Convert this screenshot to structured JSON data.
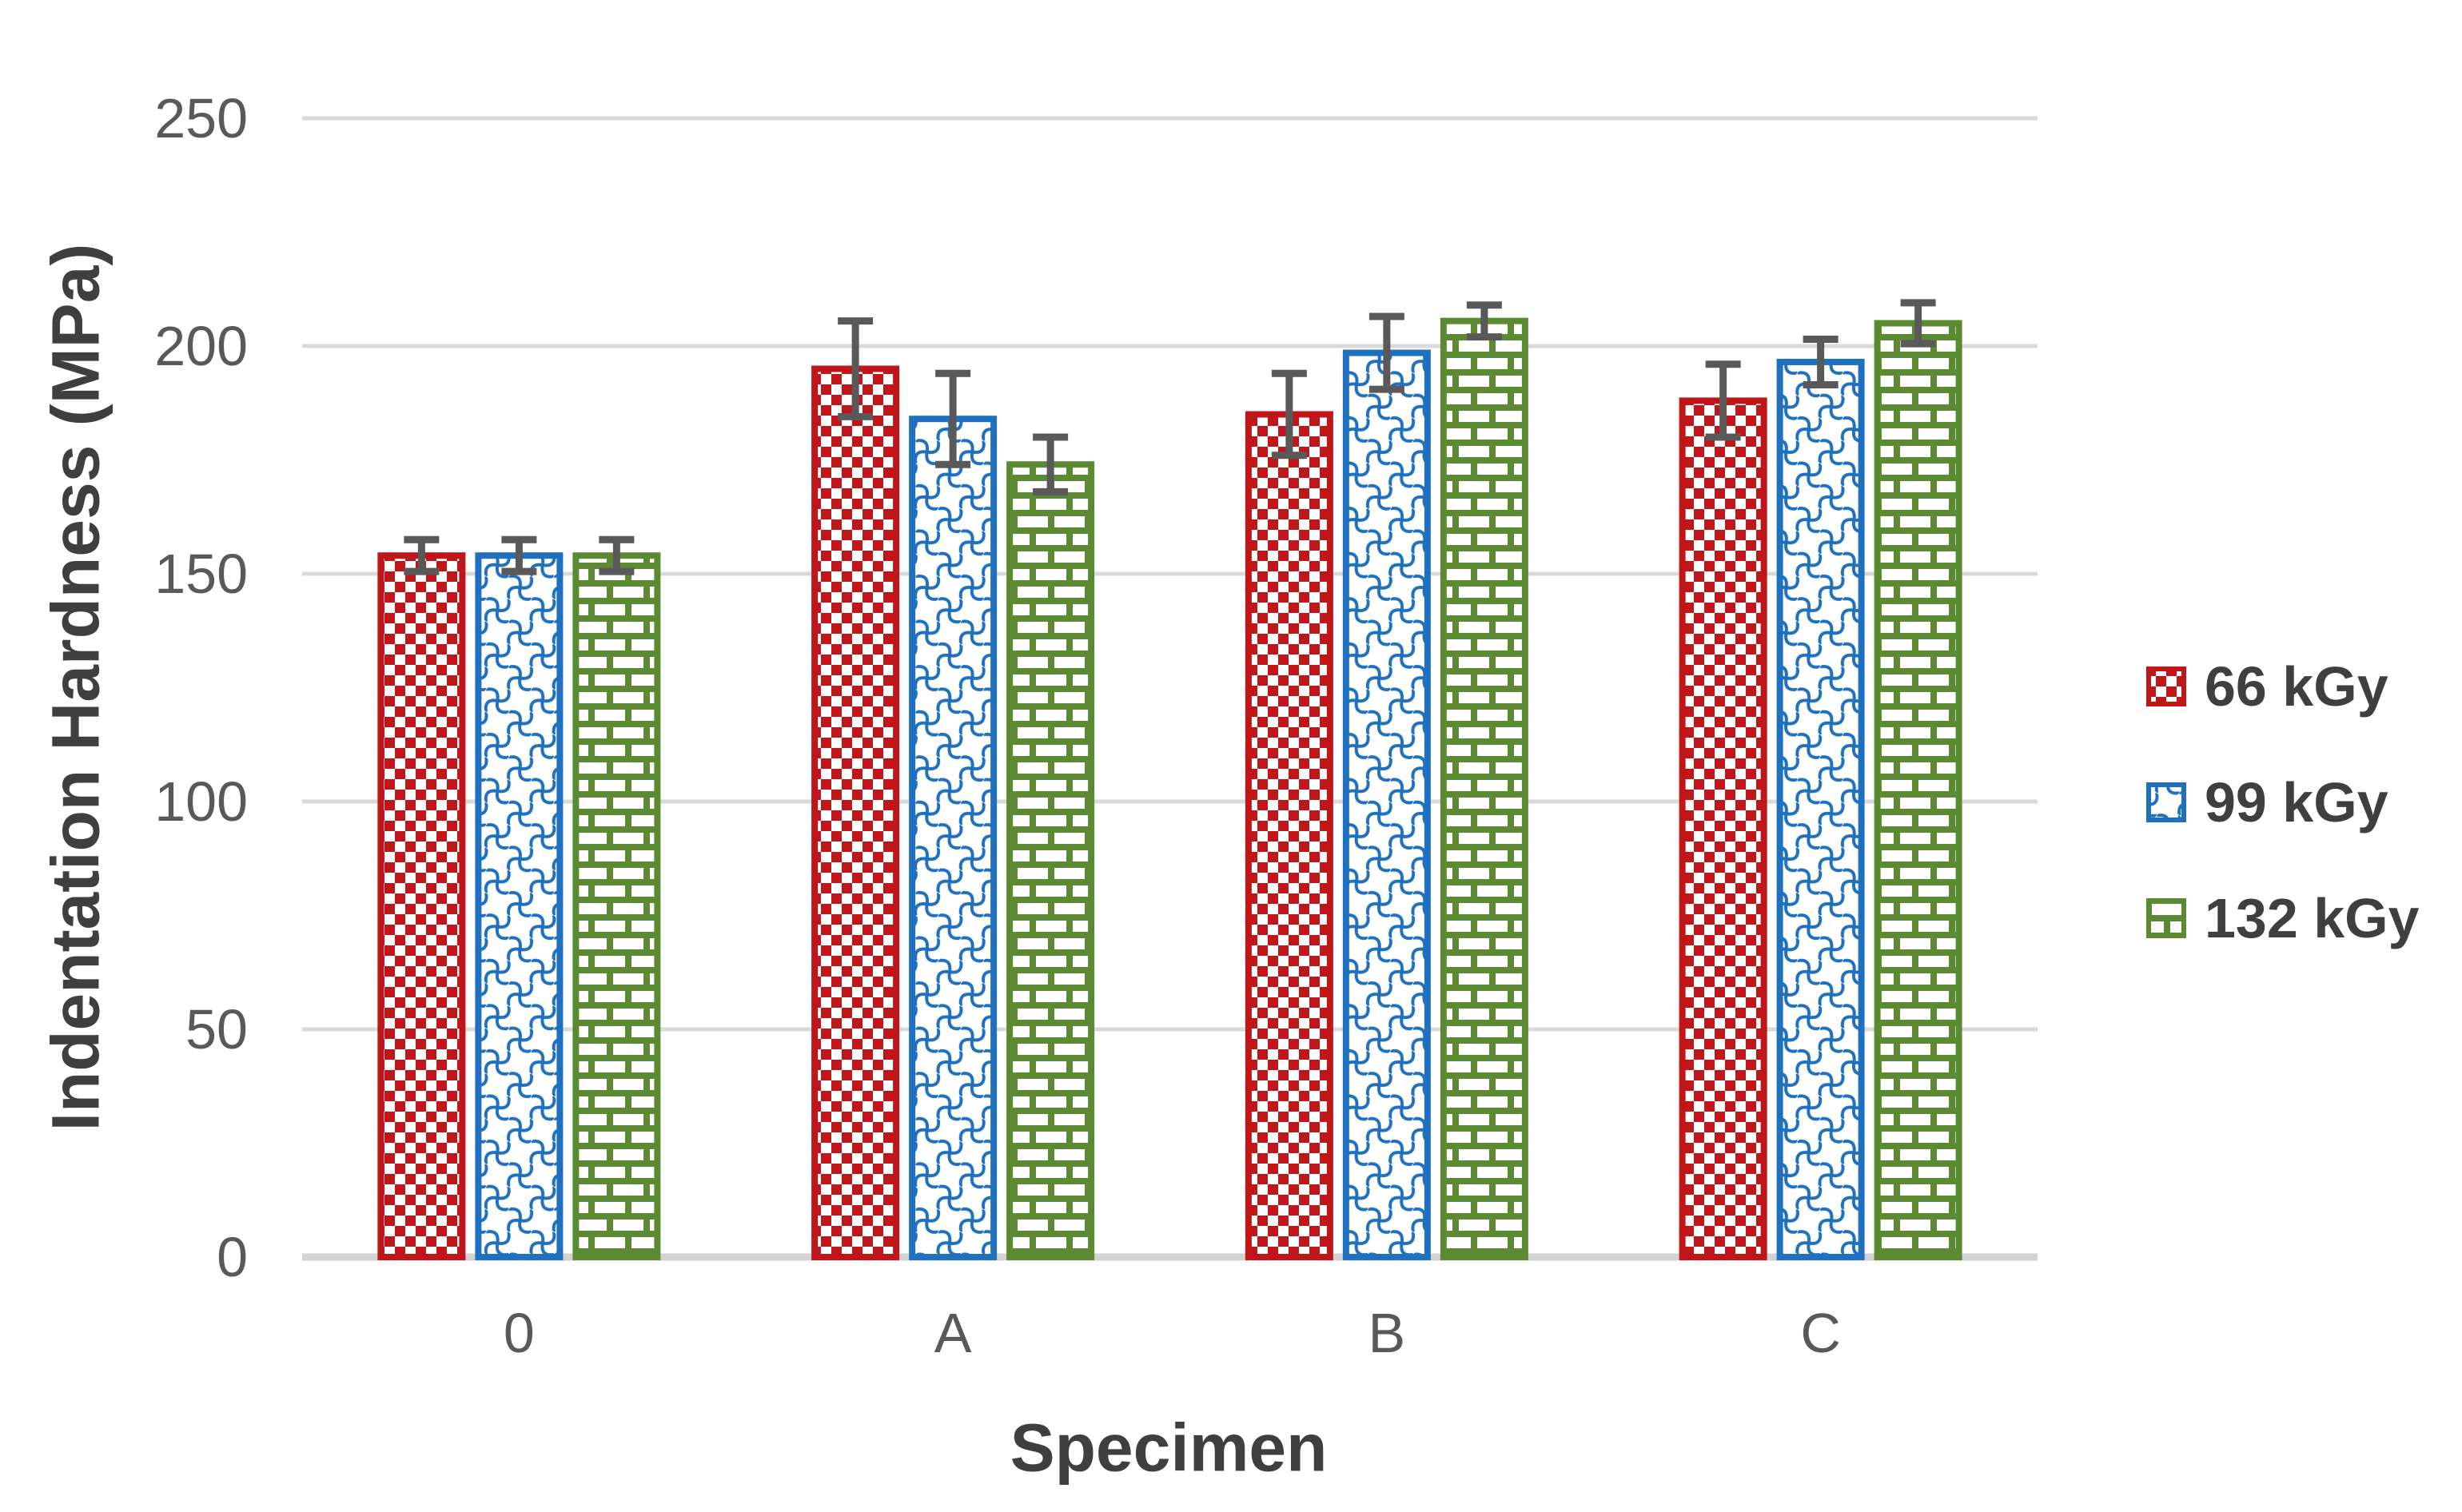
{
  "page": {
    "background": "#FFFFFF"
  },
  "chart_data": {
    "type": "bar",
    "title": "",
    "categories": [
      "0",
      "A",
      "B",
      "C"
    ],
    "series": [
      {
        "name": "66 kGy",
        "pattern": "checker",
        "color": "#C0161A",
        "values": [
          154,
          195,
          185,
          188
        ],
        "errors": [
          3.5,
          10.5,
          9,
          8
        ]
      },
      {
        "name": "99 kGy",
        "pattern": "weave",
        "color": "#2070C0",
        "values": [
          154,
          184,
          198.5,
          196.5
        ],
        "errors": [
          3.5,
          10,
          8,
          5
        ]
      },
      {
        "name": "132 kGy",
        "pattern": "brick",
        "color": "#5B8A33",
        "values": [
          154,
          174,
          205.5,
          205
        ],
        "errors": [
          3.5,
          6,
          3.5,
          4.5
        ]
      }
    ],
    "xlabel": "Specimen",
    "ylabel": "Indentation Hardness (MPa)",
    "ylim": [
      0,
      250
    ],
    "ytick_step": 50,
    "yticks": [
      "0",
      "50",
      "100",
      "150",
      "200",
      "250"
    ],
    "grid": "horizontal-gridlines",
    "legend_position": "right",
    "error_bars": true,
    "styles": {
      "gridline_color": "#D9D9D9",
      "axis_line_color": "#D2D2D2",
      "error_bar_color": "#595959",
      "tick_label_color": "#595959",
      "title_color": "#3F3F3F",
      "legend_text_color": "#3F3F3F",
      "background": "#FFFFFF"
    }
  }
}
